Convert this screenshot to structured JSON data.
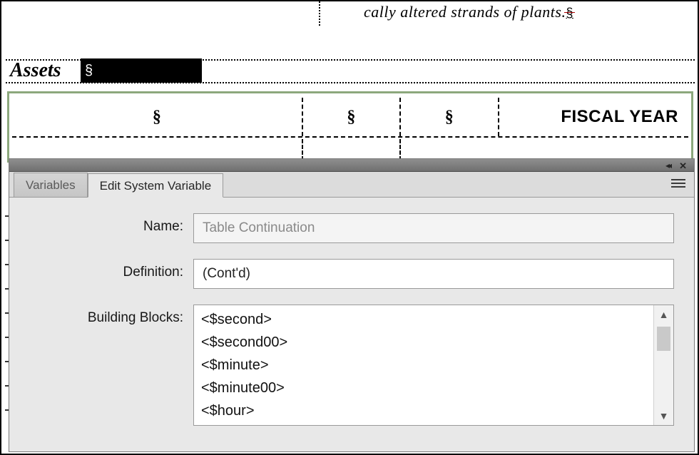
{
  "doc": {
    "top_fragment": "cally altered strands of plants.",
    "pilcrow": "§",
    "heading": "Assets",
    "heading_selection_mark": "§"
  },
  "table": {
    "border_color": "#8ca87c",
    "header": {
      "c1": "§",
      "c2": "§",
      "c3": "§",
      "c4": "FISCAL YEAR"
    }
  },
  "panel": {
    "tabs": {
      "variables": "Variables",
      "edit_sys_var": "Edit System Variable"
    },
    "labels": {
      "name": "Name:",
      "definition": "Definition:",
      "building_blocks": "Building Blocks:"
    },
    "fields": {
      "name_value": "Table Continuation",
      "definition_value": "(Cont'd)"
    },
    "building_blocks": [
      "<$second>",
      "<$second00>",
      "<$minute>",
      "<$minute00>",
      "<$hour>"
    ]
  }
}
